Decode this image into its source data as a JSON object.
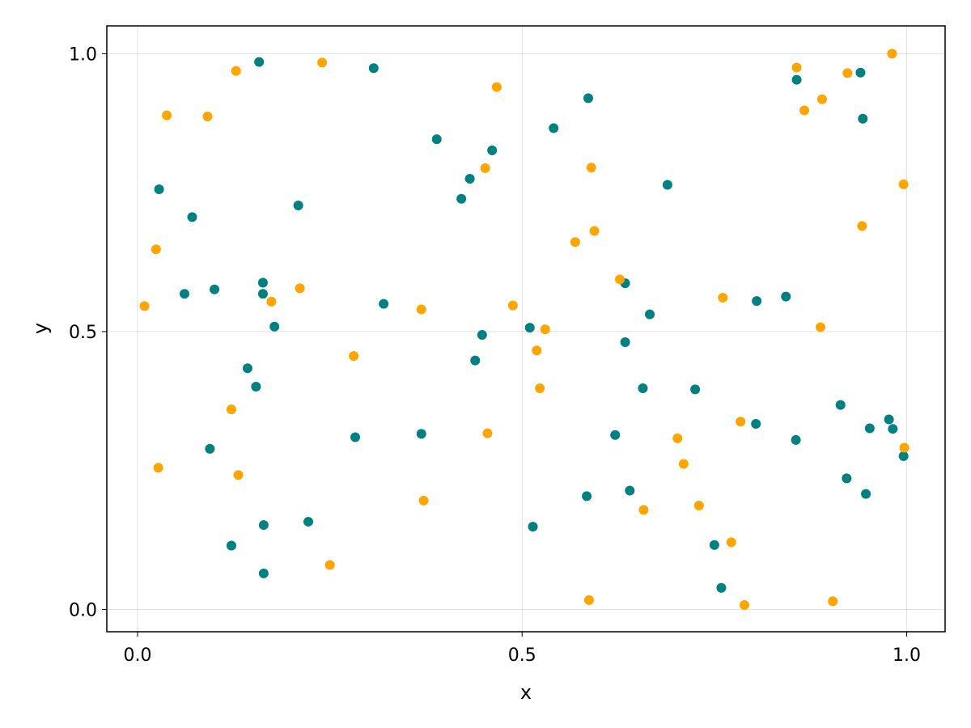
{
  "chart_data": {
    "type": "scatter",
    "title": "",
    "xlabel": "x",
    "ylabel": "y",
    "xlim": [
      -0.04,
      1.05
    ],
    "ylim": [
      -0.04,
      1.05
    ],
    "xticks": [
      0.0,
      0.5,
      1.0
    ],
    "yticks": [
      0.0,
      0.5,
      1.0
    ],
    "xtick_labels": [
      "0.0",
      "0.5",
      "1.0"
    ],
    "ytick_labels": [
      "0.0",
      "0.5",
      "1.0"
    ],
    "grid": true,
    "legend": "none",
    "series": [
      {
        "color": "#008080",
        "points": [
          [
            0.158,
            0.985
          ],
          [
            0.307,
            0.974
          ],
          [
            0.028,
            0.756
          ],
          [
            0.071,
            0.706
          ],
          [
            0.209,
            0.727
          ],
          [
            0.163,
            0.588
          ],
          [
            0.163,
            0.568
          ],
          [
            0.061,
            0.568
          ],
          [
            0.1,
            0.576
          ],
          [
            0.178,
            0.509
          ],
          [
            0.32,
            0.55
          ],
          [
            0.143,
            0.434
          ],
          [
            0.154,
            0.401
          ],
          [
            0.283,
            0.31
          ],
          [
            0.369,
            0.316
          ],
          [
            0.094,
            0.289
          ],
          [
            0.122,
            0.115
          ],
          [
            0.164,
            0.152
          ],
          [
            0.222,
            0.158
          ],
          [
            0.164,
            0.065
          ],
          [
            0.389,
            0.846
          ],
          [
            0.461,
            0.826
          ],
          [
            0.432,
            0.775
          ],
          [
            0.421,
            0.739
          ],
          [
            0.448,
            0.494
          ],
          [
            0.439,
            0.448
          ],
          [
            0.51,
            0.507
          ],
          [
            0.541,
            0.866
          ],
          [
            0.586,
            0.92
          ],
          [
            0.514,
            0.149
          ],
          [
            0.584,
            0.204
          ],
          [
            0.634,
            0.587
          ],
          [
            0.634,
            0.481
          ],
          [
            0.666,
            0.531
          ],
          [
            0.657,
            0.398
          ],
          [
            0.621,
            0.314
          ],
          [
            0.64,
            0.214
          ],
          [
            0.689,
            0.764
          ],
          [
            0.725,
            0.396
          ],
          [
            0.75,
            0.116
          ],
          [
            0.759,
            0.039
          ],
          [
            0.805,
            0.555
          ],
          [
            0.804,
            0.334
          ],
          [
            0.843,
            0.563
          ],
          [
            0.857,
            0.953
          ],
          [
            0.856,
            0.305
          ],
          [
            0.914,
            0.368
          ],
          [
            0.94,
            0.966
          ],
          [
            0.943,
            0.883
          ],
          [
            0.922,
            0.236
          ],
          [
            0.952,
            0.326
          ],
          [
            0.947,
            0.208
          ],
          [
            0.977,
            0.342
          ],
          [
            0.982,
            0.325
          ],
          [
            0.996,
            0.276
          ]
        ]
      },
      {
        "color": "#FFA500",
        "points": [
          [
            0.009,
            0.546
          ],
          [
            0.024,
            0.648
          ],
          [
            0.038,
            0.889
          ],
          [
            0.091,
            0.887
          ],
          [
            0.128,
            0.969
          ],
          [
            0.027,
            0.255
          ],
          [
            0.122,
            0.36
          ],
          [
            0.131,
            0.242
          ],
          [
            0.174,
            0.554
          ],
          [
            0.211,
            0.578
          ],
          [
            0.24,
            0.984
          ],
          [
            0.281,
            0.456
          ],
          [
            0.25,
            0.08
          ],
          [
            0.369,
            0.54
          ],
          [
            0.372,
            0.196
          ],
          [
            0.452,
            0.794
          ],
          [
            0.467,
            0.94
          ],
          [
            0.488,
            0.547
          ],
          [
            0.455,
            0.317
          ],
          [
            0.519,
            0.466
          ],
          [
            0.53,
            0.504
          ],
          [
            0.523,
            0.398
          ],
          [
            0.569,
            0.661
          ],
          [
            0.59,
            0.795
          ],
          [
            0.594,
            0.681
          ],
          [
            0.627,
            0.594
          ],
          [
            0.587,
            0.017
          ],
          [
            0.658,
            0.179
          ],
          [
            0.702,
            0.308
          ],
          [
            0.71,
            0.262
          ],
          [
            0.73,
            0.187
          ],
          [
            0.761,
            0.561
          ],
          [
            0.772,
            0.121
          ],
          [
            0.784,
            0.338
          ],
          [
            0.789,
            0.008
          ],
          [
            0.857,
            0.975
          ],
          [
            0.867,
            0.898
          ],
          [
            0.89,
            0.918
          ],
          [
            0.888,
            0.508
          ],
          [
            0.904,
            0.015
          ],
          [
            0.923,
            0.965
          ],
          [
            0.942,
            0.69
          ],
          [
            0.981,
            1.0
          ],
          [
            0.996,
            0.765
          ],
          [
            0.997,
            0.291
          ]
        ]
      }
    ]
  }
}
